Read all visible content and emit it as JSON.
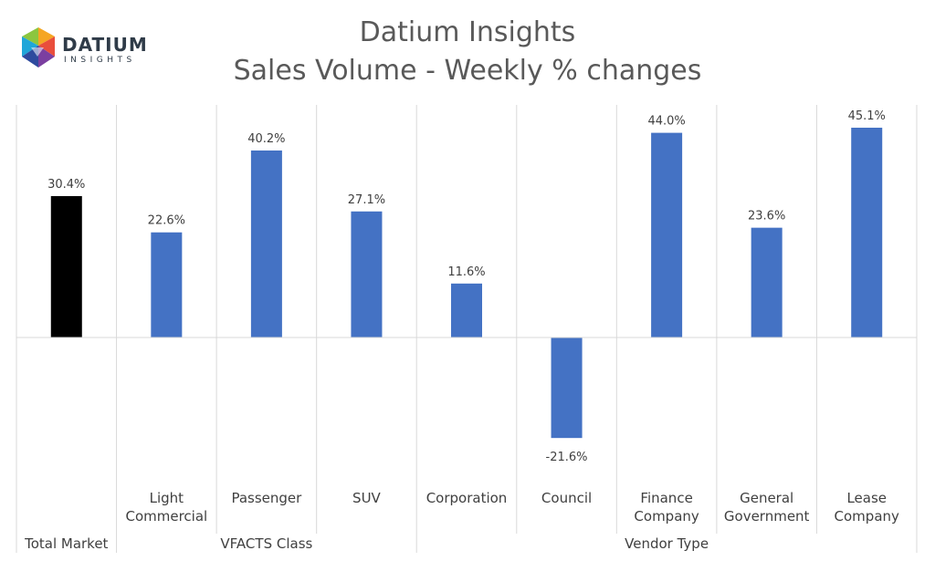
{
  "logo": {
    "word": "DATIUM",
    "sub": "INSIGHTS"
  },
  "chart_data": {
    "type": "bar",
    "title": "Datium Insights",
    "subtitle": "Sales Volume - Weekly % changes",
    "categories": [
      "Total Market",
      "Light Commercial",
      "Passenger",
      "SUV",
      "Corporation",
      "Council",
      "Finance Company",
      "General Government",
      "Lease Company"
    ],
    "category_lines": [
      [],
      [
        "Light",
        "Commercial"
      ],
      [
        "Passenger"
      ],
      [
        "SUV"
      ],
      [
        "Corporation"
      ],
      [
        "Council"
      ],
      [
        "Finance",
        "Company"
      ],
      [
        "General",
        "Government"
      ],
      [
        "Lease",
        "Company"
      ]
    ],
    "values": [
      30.4,
      22.6,
      40.2,
      27.1,
      11.6,
      -21.6,
      44.0,
      23.6,
      45.1
    ],
    "value_labels": [
      "30.4%",
      "22.6%",
      "40.2%",
      "27.1%",
      "11.6%",
      "-21.6%",
      "44.0%",
      "23.6%",
      "45.1%"
    ],
    "unit": "%",
    "groups": [
      {
        "label": "Total Market",
        "start": 0,
        "end": 0
      },
      {
        "label": "VFACTS Class",
        "start": 1,
        "end": 3
      },
      {
        "label": "Vendor Type",
        "start": 4,
        "end": 8
      }
    ],
    "colors": {
      "Total Market": "#000000",
      "default": "#4472c4"
    },
    "ylim": [
      -50,
      50
    ],
    "grid": false
  }
}
